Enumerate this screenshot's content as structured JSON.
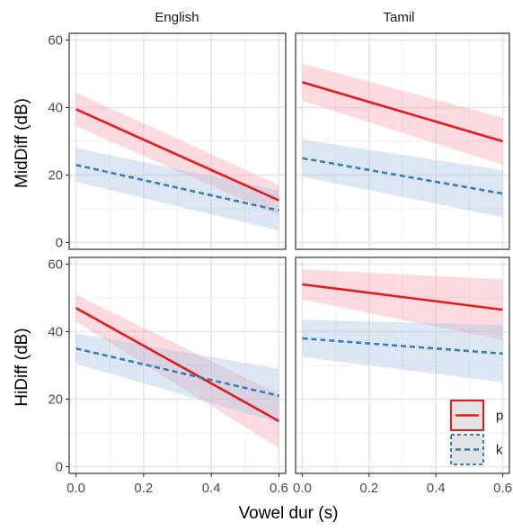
{
  "chart_data": {
    "type": "line",
    "title": "",
    "xlabel": "Vowel dur (s)",
    "xlim": [
      -0.02,
      0.62
    ],
    "ylim": [
      -2,
      62
    ],
    "x_ticks": [
      0.0,
      0.2,
      0.4,
      0.6
    ],
    "x_tick_labels": [
      "0.0",
      "0.2",
      "0.4",
      "0.6"
    ],
    "y_ticks": [
      0,
      20,
      40,
      60
    ],
    "y_tick_labels": [
      "0",
      "20",
      "40",
      "60"
    ],
    "columns": [
      "English",
      "Tamil"
    ],
    "rows": [
      {
        "ylabel": "MidDiff (dB)"
      },
      {
        "ylabel": "HiDiff (dB)"
      }
    ],
    "grid": true,
    "legend": {
      "position": "inside bottom-right panel"
    },
    "series_styles": {
      "p": {
        "name": "p",
        "color": "#e41a1c",
        "fill": "#f4a6ae",
        "dashed": false
      },
      "k": {
        "name": "k",
        "color": "#377eb8",
        "fill": "#a9c4e4",
        "dashed": true
      }
    },
    "panels": [
      {
        "row": 0,
        "col": 0,
        "series": [
          {
            "key": "p",
            "x": [
              0,
              0.6
            ],
            "y": [
              39.5,
              12.5
            ],
            "lower": [
              34.5,
              8
            ],
            "upper": [
              44.5,
              17
            ]
          },
          {
            "key": "k",
            "x": [
              0,
              0.6
            ],
            "y": [
              23,
              9.5
            ],
            "lower": [
              18,
              3.5
            ],
            "upper": [
              28,
              15.5
            ]
          }
        ]
      },
      {
        "row": 0,
        "col": 1,
        "series": [
          {
            "key": "p",
            "x": [
              0,
              0.6
            ],
            "y": [
              47.5,
              30
            ],
            "lower": [
              42,
              23
            ],
            "upper": [
              53,
              37
            ]
          },
          {
            "key": "k",
            "x": [
              0,
              0.6
            ],
            "y": [
              25,
              14.5
            ],
            "lower": [
              19.5,
              7.5
            ],
            "upper": [
              30.5,
              21.5
            ]
          }
        ]
      },
      {
        "row": 1,
        "col": 0,
        "series": [
          {
            "key": "p",
            "x": [
              0,
              0.6
            ],
            "y": [
              47,
              13.5
            ],
            "lower": [
              43,
              5.5
            ],
            "upper": [
              51,
              21.5
            ]
          },
          {
            "key": "k",
            "x": [
              0,
              0.6
            ],
            "y": [
              35,
              21
            ],
            "lower": [
              30.5,
              13
            ],
            "upper": [
              39.5,
              29
            ]
          }
        ]
      },
      {
        "row": 1,
        "col": 1,
        "series": [
          {
            "key": "p",
            "x": [
              0,
              0.6
            ],
            "y": [
              54,
              46.5
            ],
            "lower": [
              49.5,
              37.5
            ],
            "upper": [
              58.5,
              55.5
            ]
          },
          {
            "key": "k",
            "x": [
              0,
              0.6
            ],
            "y": [
              38,
              33.5
            ],
            "lower": [
              32.5,
              25
            ],
            "upper": [
              43.5,
              42
            ]
          }
        ]
      }
    ]
  }
}
